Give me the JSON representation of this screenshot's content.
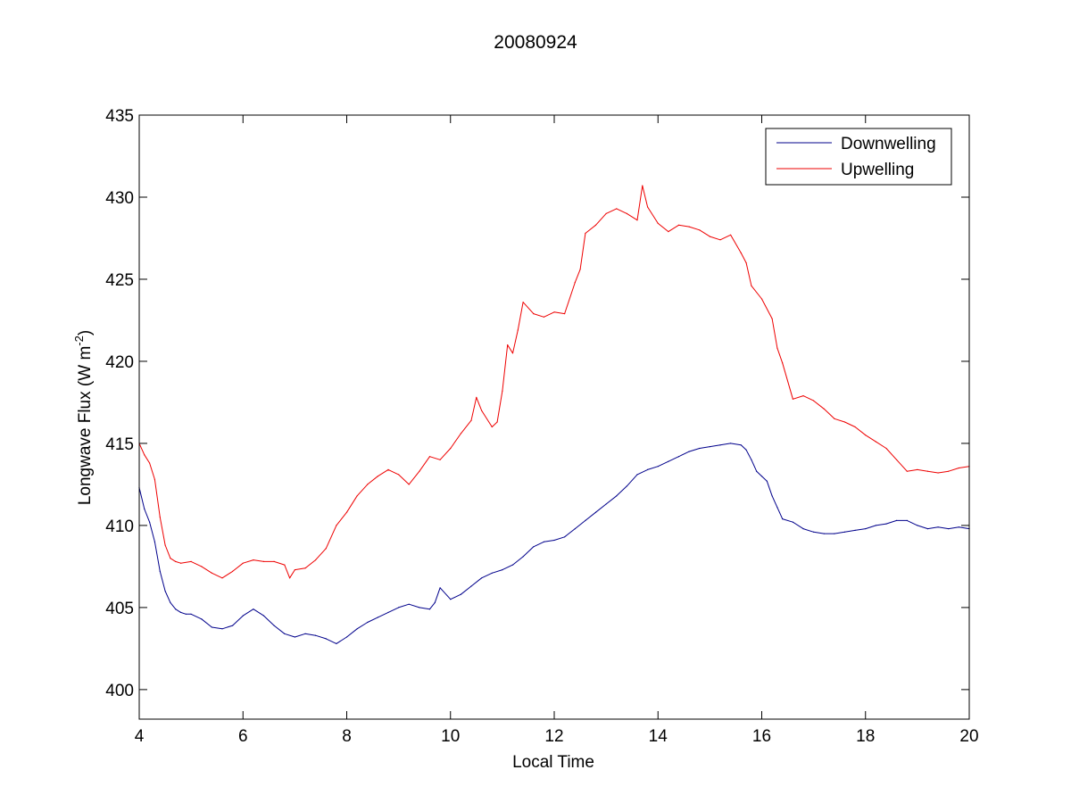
{
  "chart_data": {
    "type": "line",
    "title": "20080924",
    "xlabel": "Local Time",
    "ylabel": "Longwave Flux (W m",
    "ylabel_sup": "-2",
    "ylabel_end": ")",
    "xlim": [
      4,
      20
    ],
    "ylim": [
      398.2,
      435
    ],
    "xticks": [
      4,
      6,
      8,
      10,
      12,
      14,
      16,
      18,
      20
    ],
    "yticks": [
      400,
      405,
      410,
      415,
      420,
      425,
      430,
      435
    ],
    "grid": false,
    "legend_position": "top-right",
    "series": [
      {
        "name": "Downwelling",
        "color": "#00008b",
        "x": [
          4.0,
          4.1,
          4.2,
          4.3,
          4.4,
          4.5,
          4.6,
          4.7,
          4.8,
          4.9,
          5.0,
          5.2,
          5.4,
          5.6,
          5.8,
          6.0,
          6.2,
          6.4,
          6.6,
          6.8,
          7.0,
          7.2,
          7.4,
          7.6,
          7.8,
          8.0,
          8.2,
          8.4,
          8.6,
          8.8,
          9.0,
          9.2,
          9.4,
          9.6,
          9.7,
          9.8,
          10.0,
          10.2,
          10.4,
          10.6,
          10.8,
          11.0,
          11.2,
          11.4,
          11.6,
          11.8,
          12.0,
          12.2,
          12.4,
          12.6,
          12.8,
          13.0,
          13.2,
          13.4,
          13.6,
          13.8,
          14.0,
          14.2,
          14.4,
          14.6,
          14.8,
          15.0,
          15.2,
          15.4,
          15.6,
          15.7,
          15.8,
          15.9,
          16.0,
          16.1,
          16.2,
          16.3,
          16.4,
          16.6,
          16.8,
          17.0,
          17.2,
          17.4,
          17.6,
          17.8,
          18.0,
          18.2,
          18.4,
          18.6,
          18.8,
          19.0,
          19.2,
          19.4,
          19.6,
          19.8,
          20.0
        ],
        "values": [
          412.3,
          411.0,
          410.2,
          409.0,
          407.2,
          406.0,
          405.3,
          404.9,
          404.7,
          404.6,
          404.6,
          404.3,
          403.8,
          403.7,
          403.9,
          404.5,
          404.9,
          404.5,
          403.9,
          403.4,
          403.2,
          403.4,
          403.3,
          403.1,
          402.8,
          403.2,
          403.7,
          404.1,
          404.4,
          404.7,
          405.0,
          405.2,
          405.0,
          404.9,
          405.3,
          406.2,
          405.5,
          405.8,
          406.3,
          406.8,
          407.1,
          407.3,
          407.6,
          408.1,
          408.7,
          409.0,
          409.1,
          409.3,
          409.8,
          410.3,
          410.8,
          411.3,
          411.8,
          412.4,
          413.1,
          413.4,
          413.6,
          413.9,
          414.2,
          414.5,
          414.7,
          414.8,
          414.9,
          415.0,
          414.9,
          414.6,
          414.0,
          413.3,
          413.0,
          412.7,
          411.8,
          411.1,
          410.4,
          410.2,
          409.8,
          409.6,
          409.5,
          409.5,
          409.6,
          409.7,
          409.8,
          410.0,
          410.1,
          410.3,
          410.3,
          410.0,
          409.8,
          409.9,
          409.8,
          409.9,
          409.8
        ]
      },
      {
        "name": "Upwelling",
        "color": "#ee0000",
        "x": [
          4.0,
          4.1,
          4.2,
          4.3,
          4.4,
          4.5,
          4.6,
          4.7,
          4.8,
          5.0,
          5.2,
          5.4,
          5.6,
          5.8,
          6.0,
          6.2,
          6.4,
          6.6,
          6.8,
          6.9,
          7.0,
          7.2,
          7.4,
          7.6,
          7.8,
          8.0,
          8.2,
          8.4,
          8.6,
          8.8,
          9.0,
          9.2,
          9.4,
          9.6,
          9.8,
          10.0,
          10.2,
          10.4,
          10.5,
          10.6,
          10.8,
          10.9,
          11.0,
          11.1,
          11.2,
          11.3,
          11.4,
          11.6,
          11.8,
          12.0,
          12.2,
          12.4,
          12.5,
          12.6,
          12.8,
          13.0,
          13.2,
          13.4,
          13.6,
          13.7,
          13.8,
          14.0,
          14.2,
          14.4,
          14.6,
          14.8,
          15.0,
          15.2,
          15.4,
          15.6,
          15.7,
          15.8,
          16.0,
          16.2,
          16.3,
          16.4,
          16.6,
          16.8,
          17.0,
          17.2,
          17.4,
          17.6,
          17.8,
          18.0,
          18.2,
          18.4,
          18.6,
          18.8,
          19.0,
          19.2,
          19.4,
          19.6,
          19.8,
          20.0
        ],
        "values": [
          415.0,
          414.3,
          413.8,
          412.8,
          410.5,
          408.8,
          408.0,
          407.8,
          407.7,
          407.8,
          407.5,
          407.1,
          406.8,
          407.2,
          407.7,
          407.9,
          407.8,
          407.8,
          407.6,
          406.8,
          407.3,
          407.4,
          407.9,
          408.6,
          410.0,
          410.8,
          411.8,
          412.5,
          413.0,
          413.4,
          413.1,
          412.5,
          413.3,
          414.2,
          414.0,
          414.7,
          415.6,
          416.4,
          417.8,
          417.0,
          416.0,
          416.3,
          418.2,
          421.0,
          420.5,
          421.9,
          423.6,
          422.9,
          422.7,
          423.0,
          422.9,
          424.8,
          425.6,
          427.8,
          428.3,
          429.0,
          429.3,
          429.0,
          428.6,
          430.7,
          429.4,
          428.4,
          427.9,
          428.3,
          428.2,
          428.0,
          427.6,
          427.4,
          427.7,
          426.6,
          426.0,
          424.6,
          423.8,
          422.6,
          420.8,
          419.9,
          417.7,
          417.9,
          417.6,
          417.1,
          416.5,
          416.3,
          416.0,
          415.5,
          415.1,
          414.7,
          414.0,
          413.3,
          413.4,
          413.3,
          413.2,
          413.3,
          413.5,
          413.6
        ]
      }
    ]
  }
}
